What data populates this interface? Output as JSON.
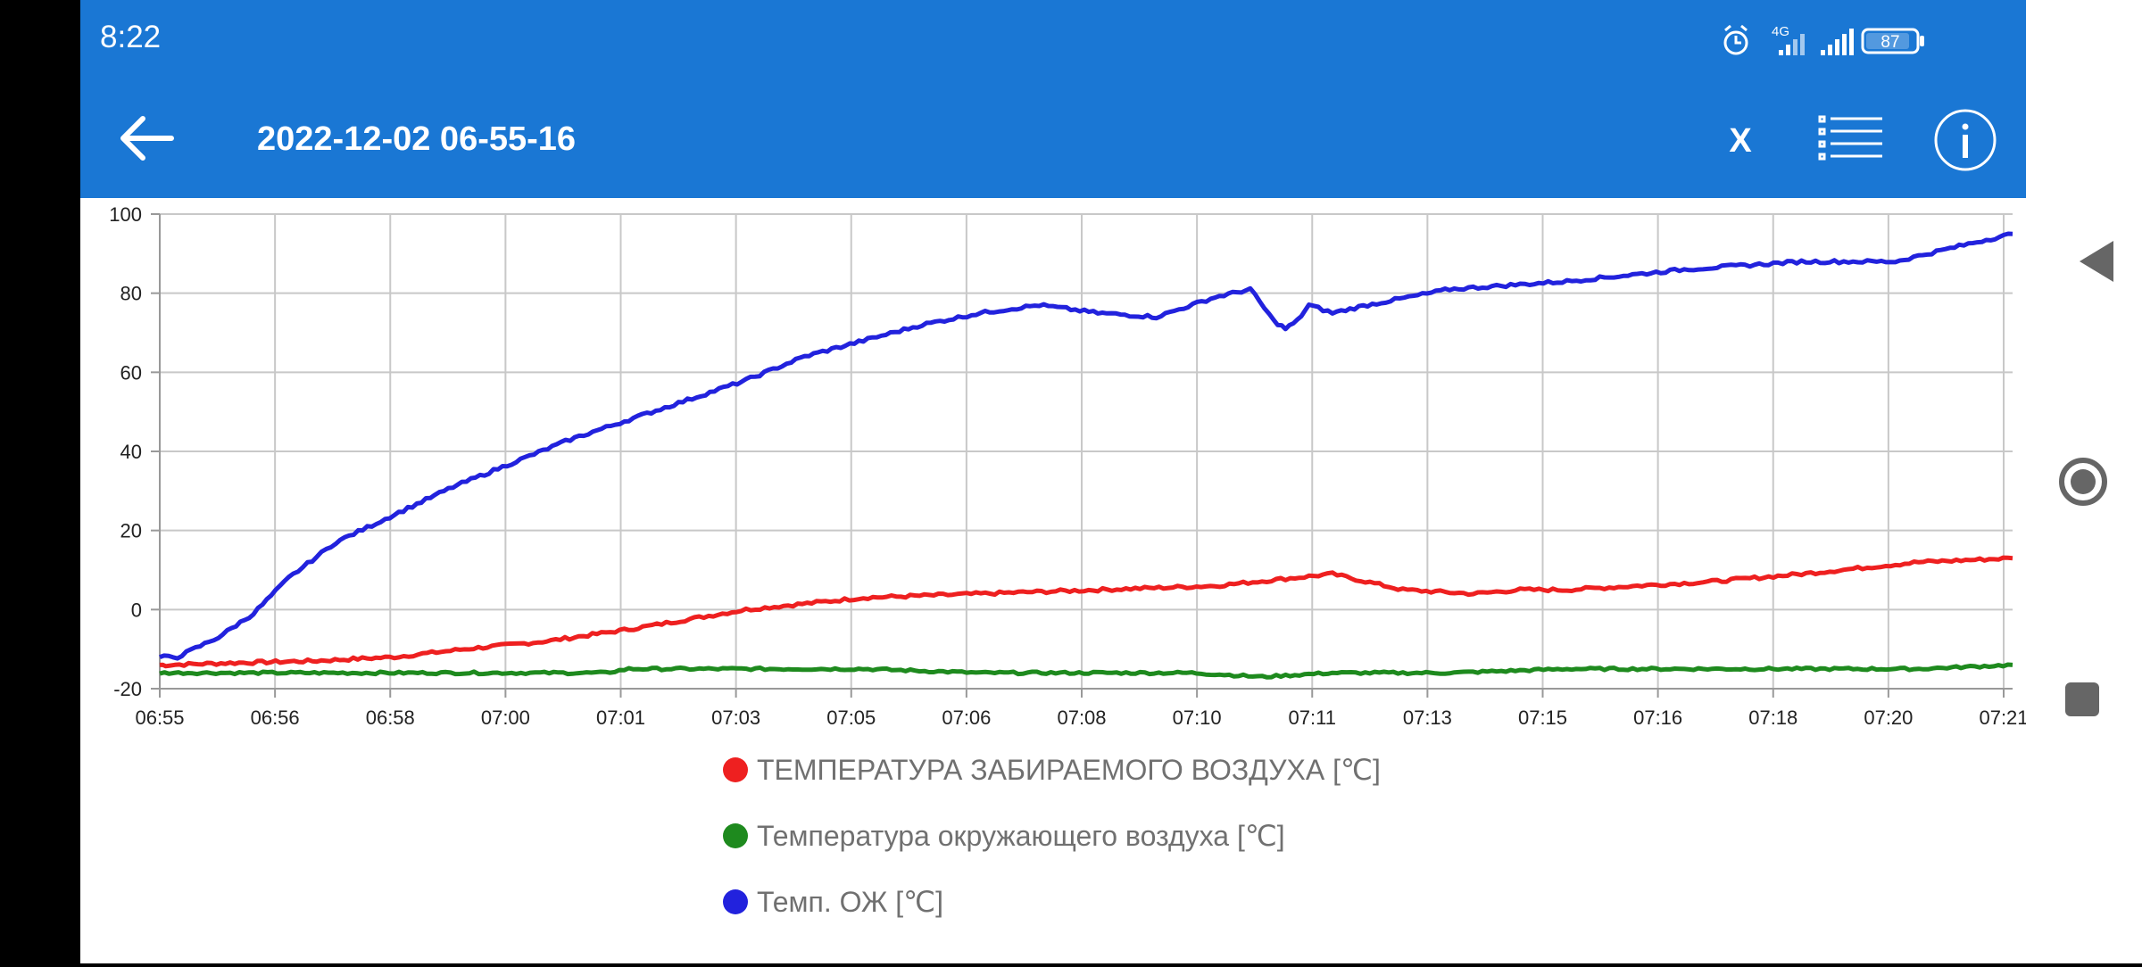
{
  "status_bar": {
    "time": "8:22",
    "network": "4G",
    "battery": "87"
  },
  "toolbar": {
    "title": "2022-12-02 06-55-16",
    "x_label": "X",
    "back_icon": "arrow-left-icon",
    "list_icon": "list-icon",
    "info_icon": "info-icon"
  },
  "chart_data": {
    "type": "line",
    "ylim": [
      -20,
      100
    ],
    "yticks": [
      -20,
      0,
      20,
      40,
      60,
      80,
      100
    ],
    "xlim_seconds": [
      0,
      1580
    ],
    "xticks": [
      "06:55",
      "06:56",
      "06:58",
      "07:00",
      "07:01",
      "07:03",
      "07:05",
      "07:06",
      "07:08",
      "07:10",
      "07:11",
      "07:13",
      "07:15",
      "07:16",
      "07:18",
      "07:20",
      "07:21"
    ],
    "grid": true,
    "x_format": "mm:ss offset from 06:55:16 shown as HH:MM clock labels",
    "series": [
      {
        "name": "ТЕМПЕРАТУРА ЗАБИРАЕМОГО ВОЗДУХА [℃]",
        "color": "#ee2020",
        "x": [
          0,
          5,
          60,
          130,
          200,
          260,
          330,
          400,
          500,
          600,
          700,
          800,
          900,
          1000,
          1060,
          1120,
          1160,
          1200,
          1260,
          1320,
          1400,
          1500,
          1580
        ],
        "y": [
          -14,
          -14,
          -13.5,
          -13,
          -12,
          -10,
          -8,
          -5,
          0,
          3,
          4,
          5,
          6,
          9,
          5,
          4,
          5,
          5,
          6,
          7,
          9,
          12,
          13
        ]
      },
      {
        "name": "Температура окружающего воздуха [℃]",
        "color": "#1e8a1e",
        "x": [
          0,
          100,
          200,
          300,
          380,
          400,
          500,
          600,
          700,
          800,
          880,
          940,
          1000,
          1060,
          1100,
          1200,
          1300,
          1400,
          1500,
          1580
        ],
        "y": [
          -16,
          -16,
          -16,
          -16,
          -16,
          -15,
          -15,
          -15,
          -16,
          -16,
          -16,
          -17,
          -16,
          -16,
          -16,
          -15,
          -15,
          -15,
          -15,
          -14
        ],
        "noise": 0.6
      },
      {
        "name": "Темп. ОЖ [℃]",
        "color": "#2222dd",
        "x": [
          0,
          15,
          50,
          80,
          110,
          150,
          200,
          250,
          300,
          350,
          400,
          450,
          500,
          550,
          600,
          650,
          700,
          750,
          800,
          850,
          900,
          930,
          950,
          960,
          970,
          980,
          1000,
          1030,
          1100,
          1200,
          1300,
          1400,
          1480,
          1550,
          1580
        ],
        "y": [
          -12,
          -12,
          -7,
          -1,
          8,
          17,
          24,
          31,
          37,
          43,
          48,
          53,
          58,
          64,
          68,
          72,
          75,
          77,
          75,
          74,
          79,
          81,
          73,
          71,
          73,
          77,
          75,
          77,
          81,
          83,
          86,
          88,
          88,
          93,
          95
        ]
      }
    ]
  }
}
